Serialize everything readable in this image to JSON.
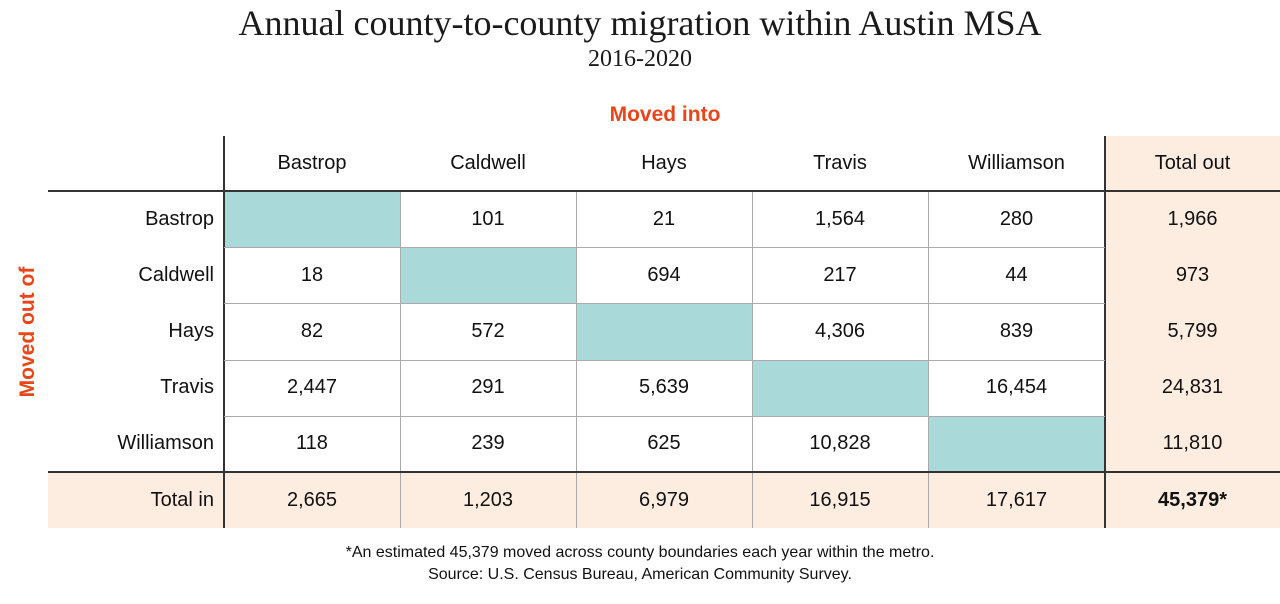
{
  "chart_data": {
    "type": "table",
    "title": "Annual county-to-county migration within Austin MSA",
    "subtitle": "2016-2020",
    "column_axis_label": "Moved into",
    "row_axis_label": "Moved out of",
    "columns": [
      "Bastrop",
      "Caldwell",
      "Hays",
      "Travis",
      "Williamson",
      "Total out"
    ],
    "rows": [
      {
        "label": "Bastrop",
        "values": [
          "",
          "101",
          "21",
          "1,564",
          "280",
          "1,966"
        ]
      },
      {
        "label": "Caldwell",
        "values": [
          "18",
          "",
          "694",
          "217",
          "44",
          "973"
        ]
      },
      {
        "label": "Hays",
        "values": [
          "82",
          "572",
          "",
          "4,306",
          "839",
          "5,799"
        ]
      },
      {
        "label": "Travis",
        "values": [
          "2,447",
          "291",
          "5,639",
          "",
          "16,454",
          "24,831"
        ]
      },
      {
        "label": "Williamson",
        "values": [
          "118",
          "239",
          "625",
          "10,828",
          "",
          "11,810"
        ]
      },
      {
        "label": "Total in",
        "values": [
          "2,665",
          "1,203",
          "6,979",
          "16,915",
          "17,617",
          "45,379*"
        ]
      }
    ],
    "footnote": "*An estimated 45,379 moved across county boundaries each year within the metro.",
    "source": "Source:  U.S. Census Bureau, American Community Survey.",
    "colors": {
      "accent_text": "#e8461a",
      "diagonal_fill": "#a9d9d9",
      "total_fill": "#fdede0"
    }
  }
}
